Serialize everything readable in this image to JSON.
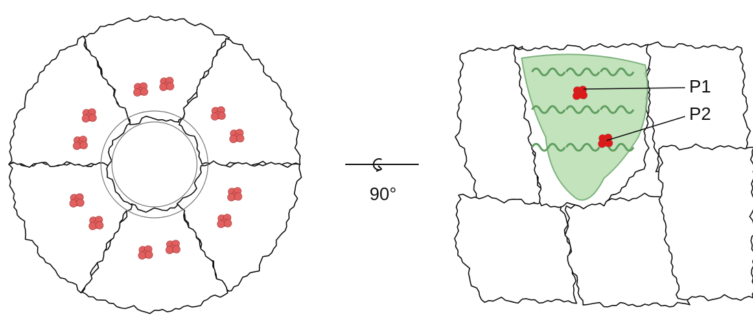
{
  "rotation": {
    "label": "90°"
  },
  "annotations": [
    {
      "label": "P1"
    },
    {
      "label": "P2"
    }
  ]
}
